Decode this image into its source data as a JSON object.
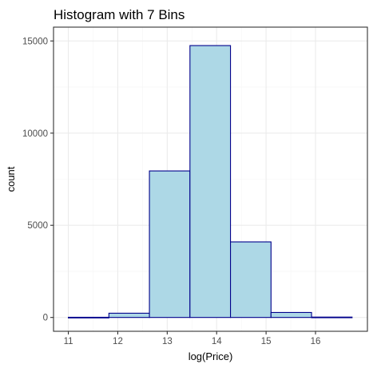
{
  "chart_data": {
    "type": "bar",
    "title": "Histogram with 7 Bins",
    "xlabel": "log(Price)",
    "ylabel": "count",
    "bins": [
      {
        "x0": 11.0,
        "x1": 11.82,
        "count": 10
      },
      {
        "x0": 11.82,
        "x1": 12.64,
        "count": 230
      },
      {
        "x0": 12.64,
        "x1": 13.46,
        "count": 7950
      },
      {
        "x0": 13.46,
        "x1": 14.28,
        "count": 14750
      },
      {
        "x0": 14.28,
        "x1": 15.1,
        "count": 4100
      },
      {
        "x0": 15.1,
        "x1": 15.92,
        "count": 270
      },
      {
        "x0": 15.92,
        "x1": 16.74,
        "count": 20
      }
    ],
    "xticks": [
      11,
      12,
      13,
      14,
      15,
      16
    ],
    "yticks": [
      0,
      5000,
      10000,
      15000
    ],
    "xlim": [
      10.7,
      17.05
    ],
    "ylim": [
      -750,
      15750
    ],
    "grid": true,
    "colors": {
      "bar_fill": "#add8e6",
      "bar_stroke": "#00008b",
      "grid_major": "#ebebeb",
      "grid_minor": "#f5f5f5",
      "panel_border": "#333333",
      "tick_text": "#4d4d4d"
    }
  }
}
